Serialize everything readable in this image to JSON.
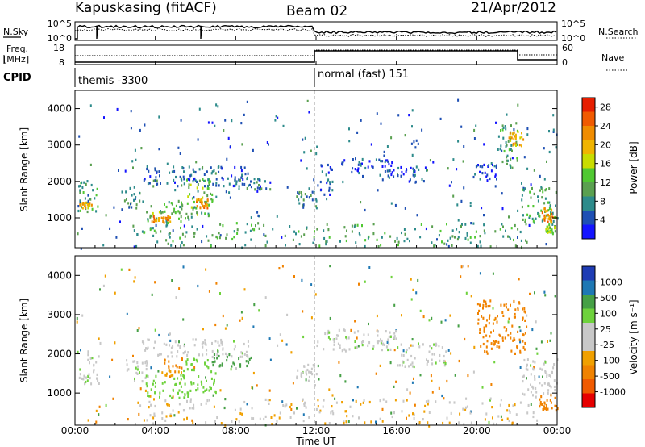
{
  "header": {
    "station": "Kapuskasing (fitACF)",
    "beam": "Beam 02",
    "date": "21/Apr/2012"
  },
  "nsky_panel": {
    "left_label": "N.Sky",
    "right_label": "N.Search",
    "left_ticks": [
      "10^5",
      "10^0"
    ],
    "right_ticks": [
      "10^5",
      "10^0"
    ]
  },
  "freq_panel": {
    "left_label_1": "Freq.",
    "left_label_2": "[MHz]",
    "right_label": "Nave",
    "left_ticks": [
      "18",
      "8"
    ],
    "right_ticks": [
      "60",
      "0"
    ]
  },
  "cpid": {
    "label": "CPID",
    "modes": [
      "themis -3300",
      "normal (fast) 151"
    ]
  },
  "axes": {
    "ylabel": "Slant Range [km]",
    "xlabel": "Time UT",
    "y_ticks": [
      "1000",
      "2000",
      "3000",
      "4000"
    ],
    "x_ticks": [
      "00:00",
      "04:00",
      "08:00",
      "12:00",
      "16:00",
      "20:00",
      "00:00"
    ]
  },
  "power_colorbar": {
    "label": "Power [dB]",
    "ticks": [
      "4",
      "8",
      "12",
      "16",
      "20",
      "24",
      "28"
    ],
    "colors": [
      "#1414ff",
      "#1e4fb4",
      "#2d8b8b",
      "#5aa050",
      "#50c832",
      "#c8dc00",
      "#f0b400",
      "#f08c00",
      "#f05a00",
      "#e61e00"
    ]
  },
  "velocity_colorbar": {
    "label": "Velocity [m s⁻¹]",
    "ticks": [
      "1000",
      "500",
      "100",
      "25",
      "-25",
      "-100",
      "-500",
      "-1000"
    ],
    "colors": [
      "#1e3cb4",
      "#1e78b4",
      "#46a046",
      "#6ed23c",
      "#c8c8c8",
      "#c8c8c8",
      "#f0a000",
      "#f08200",
      "#f05a00",
      "#e60000"
    ]
  },
  "chart_data": {
    "type": "heatmap",
    "x_range_hours": [
      0,
      24
    ],
    "y_range_km": [
      180,
      4500
    ],
    "mode_change_hour": 12,
    "panels": [
      {
        "name": "Power",
        "regions": [
          {
            "t": [
              0.1,
              1.1
            ],
            "r": [
              1200,
              2050
            ],
            "v": 10
          },
          {
            "t": [
              0.2,
              0.8
            ],
            "r": [
              1300,
              1450
            ],
            "v": 20
          },
          {
            "t": [
              2.3,
              3.4
            ],
            "r": [
              1250,
              1900
            ],
            "v": 8
          },
          {
            "t": [
              3.3,
              8.6
            ],
            "r": [
              1900,
              2450
            ],
            "v": 6
          },
          {
            "t": [
              3.5,
              5.5
            ],
            "r": [
              880,
              1500
            ],
            "v": 12
          },
          {
            "t": [
              3.8,
              4.8
            ],
            "r": [
              900,
              1100
            ],
            "v": 22
          },
          {
            "t": [
              5.5,
              7.0
            ],
            "r": [
              1050,
              2100
            ],
            "v": 12
          },
          {
            "t": [
              6.0,
              6.6
            ],
            "r": [
              1300,
              1550
            ],
            "v": 22
          },
          {
            "t": [
              8.0,
              9.5
            ],
            "r": [
              1800,
              2150
            ],
            "v": 6
          },
          {
            "t": [
              11.0,
              12.0
            ],
            "r": [
              1250,
              1750
            ],
            "v": 8
          },
          {
            "t": [
              12.0,
              12.8
            ],
            "r": [
              1550,
              2500
            ],
            "v": 4
          },
          {
            "t": [
              13.0,
              15.8
            ],
            "r": [
              2250,
              2650
            ],
            "v": 4
          },
          {
            "t": [
              15.5,
              17.5
            ],
            "r": [
              2000,
              2450
            ],
            "v": 4
          },
          {
            "t": [
              19.8,
              21.0
            ],
            "r": [
              2050,
              2500
            ],
            "v": 4
          },
          {
            "t": [
              21.0,
              22.0
            ],
            "r": [
              2400,
              3600
            ],
            "v": 10
          },
          {
            "t": [
              21.5,
              22.3
            ],
            "r": [
              3000,
              3400
            ],
            "v": 20
          },
          {
            "t": [
              22.2,
              24.0
            ],
            "r": [
              800,
              1900
            ],
            "v": 10
          },
          {
            "t": [
              23.2,
              24.0
            ],
            "r": [
              900,
              1300
            ],
            "v": 22
          },
          {
            "t": [
              23.4,
              23.9
            ],
            "r": [
              580,
              800
            ],
            "v": 14
          }
        ]
      },
      {
        "name": "Velocity",
        "regions": [
          {
            "t": [
              0.1,
              1.2
            ],
            "r": [
              1250,
              2100
            ],
            "v": 0
          },
          {
            "t": [
              2.5,
              3.6
            ],
            "r": [
              1300,
              1900
            ],
            "v": 0
          },
          {
            "t": [
              3.3,
              8.6
            ],
            "r": [
              1950,
              2400
            ],
            "v": 0
          },
          {
            "t": [
              3.5,
              5.6
            ],
            "r": [
              880,
              1500
            ],
            "v": 60
          },
          {
            "t": [
              5.3,
              7.0
            ],
            "r": [
              1000,
              1900
            ],
            "v": 60
          },
          {
            "t": [
              4.3,
              5.3
            ],
            "r": [
              1450,
              1900
            ],
            "v": -300
          },
          {
            "t": [
              6.8,
              8.8
            ],
            "r": [
              1700,
              2100
            ],
            "v": 200
          },
          {
            "t": [
              11.0,
              12.0
            ],
            "r": [
              1300,
              1750
            ],
            "v": 0
          },
          {
            "t": [
              12.0,
              16.0
            ],
            "r": [
              2100,
              2650
            ],
            "v": 0
          },
          {
            "t": [
              16.0,
              18.5
            ],
            "r": [
              1700,
              2300
            ],
            "v": 0
          },
          {
            "t": [
              20.0,
              22.4
            ],
            "r": [
              2000,
              3400
            ],
            "v": -400
          },
          {
            "t": [
              22.2,
              24.0
            ],
            "r": [
              900,
              1900
            ],
            "v": 0
          },
          {
            "t": [
              23.0,
              24.0
            ],
            "r": [
              600,
              1000
            ],
            "v": -400
          }
        ]
      }
    ]
  }
}
